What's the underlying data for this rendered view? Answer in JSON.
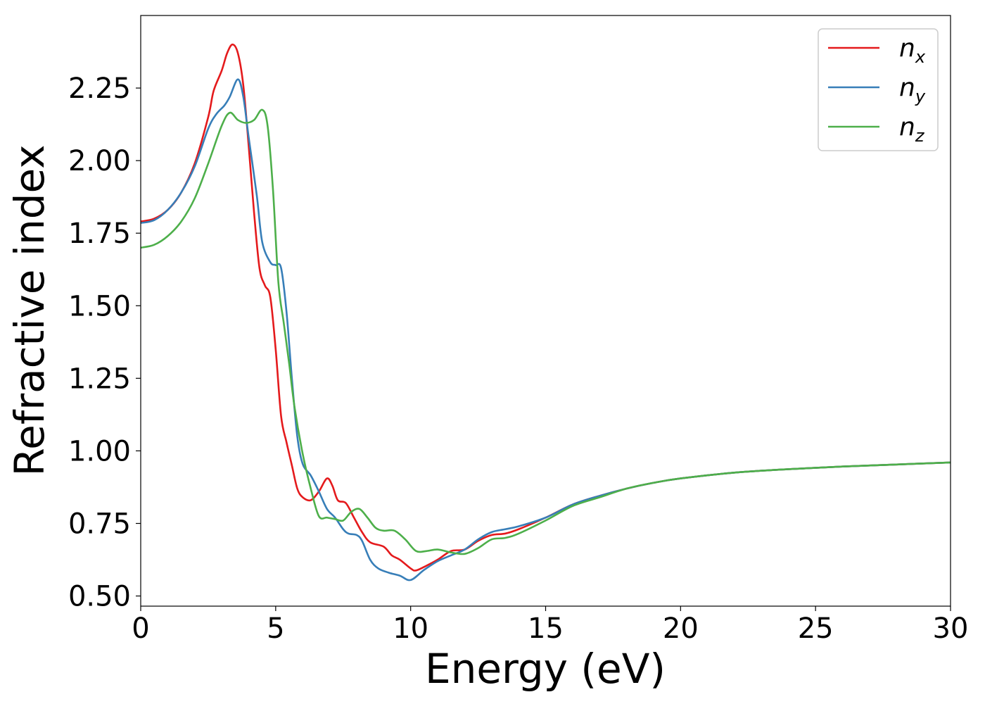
{
  "chart_data": {
    "type": "line",
    "xlabel": "Energy (eV)",
    "ylabel": "Refractive index",
    "xlim": [
      0,
      30
    ],
    "ylim": [
      0.465,
      2.5
    ],
    "xticks": [
      0,
      5,
      10,
      15,
      20,
      25,
      30
    ],
    "xtick_labels": [
      "0",
      "5",
      "10",
      "15",
      "20",
      "25",
      "30"
    ],
    "yticks": [
      0.5,
      0.75,
      1.0,
      1.25,
      1.5,
      1.75,
      2.0,
      2.25
    ],
    "ytick_labels": [
      "0.50",
      "0.75",
      "1.00",
      "1.25",
      "1.50",
      "1.75",
      "2.00",
      "2.25"
    ],
    "grid": false,
    "legend_position": "top-right",
    "series": [
      {
        "name": "n",
        "subscript": "x",
        "color": "#e41a1c",
        "points": [
          [
            0,
            1.79
          ],
          [
            0.5,
            1.8
          ],
          [
            1.0,
            1.83
          ],
          [
            1.5,
            1.89
          ],
          [
            2.0,
            1.99
          ],
          [
            2.5,
            2.15
          ],
          [
            2.7,
            2.24
          ],
          [
            3.0,
            2.31
          ],
          [
            3.2,
            2.37
          ],
          [
            3.4,
            2.4
          ],
          [
            3.6,
            2.37
          ],
          [
            3.8,
            2.26
          ],
          [
            4.0,
            2.05
          ],
          [
            4.2,
            1.82
          ],
          [
            4.4,
            1.63
          ],
          [
            4.6,
            1.57
          ],
          [
            4.8,
            1.53
          ],
          [
            5.0,
            1.35
          ],
          [
            5.2,
            1.12
          ],
          [
            5.4,
            1.03
          ],
          [
            5.6,
            0.95
          ],
          [
            5.8,
            0.87
          ],
          [
            6.0,
            0.84
          ],
          [
            6.3,
            0.83
          ],
          [
            6.6,
            0.86
          ],
          [
            6.9,
            0.905
          ],
          [
            7.1,
            0.88
          ],
          [
            7.3,
            0.83
          ],
          [
            7.6,
            0.82
          ],
          [
            7.9,
            0.77
          ],
          [
            8.2,
            0.72
          ],
          [
            8.5,
            0.685
          ],
          [
            9.0,
            0.67
          ],
          [
            9.3,
            0.64
          ],
          [
            9.6,
            0.625
          ],
          [
            10.0,
            0.595
          ],
          [
            10.2,
            0.588
          ],
          [
            10.6,
            0.605
          ],
          [
            11.0,
            0.625
          ],
          [
            11.5,
            0.655
          ],
          [
            12.0,
            0.66
          ],
          [
            12.5,
            0.69
          ],
          [
            13.0,
            0.71
          ],
          [
            13.5,
            0.715
          ],
          [
            14.0,
            0.73
          ],
          [
            15.0,
            0.77
          ],
          [
            16.0,
            0.815
          ],
          [
            17.0,
            0.845
          ],
          [
            18.0,
            0.87
          ],
          [
            19.0,
            0.89
          ],
          [
            20.0,
            0.905
          ],
          [
            22.0,
            0.925
          ],
          [
            24.0,
            0.937
          ],
          [
            26.0,
            0.946
          ],
          [
            28.0,
            0.953
          ],
          [
            30.0,
            0.96
          ]
        ]
      },
      {
        "name": "n",
        "subscript": "y",
        "color": "#377eb8",
        "points": [
          [
            0,
            1.785
          ],
          [
            0.5,
            1.795
          ],
          [
            1.0,
            1.83
          ],
          [
            1.5,
            1.89
          ],
          [
            2.0,
            1.98
          ],
          [
            2.5,
            2.11
          ],
          [
            2.8,
            2.16
          ],
          [
            3.1,
            2.19
          ],
          [
            3.3,
            2.22
          ],
          [
            3.6,
            2.28
          ],
          [
            3.8,
            2.22
          ],
          [
            4.0,
            2.08
          ],
          [
            4.3,
            1.88
          ],
          [
            4.5,
            1.72
          ],
          [
            4.8,
            1.65
          ],
          [
            5.0,
            1.64
          ],
          [
            5.2,
            1.63
          ],
          [
            5.4,
            1.48
          ],
          [
            5.6,
            1.25
          ],
          [
            5.8,
            1.05
          ],
          [
            6.0,
            0.955
          ],
          [
            6.3,
            0.915
          ],
          [
            6.6,
            0.86
          ],
          [
            6.9,
            0.8
          ],
          [
            7.2,
            0.77
          ],
          [
            7.5,
            0.73
          ],
          [
            7.7,
            0.715
          ],
          [
            8.0,
            0.71
          ],
          [
            8.2,
            0.69
          ],
          [
            8.5,
            0.625
          ],
          [
            8.8,
            0.595
          ],
          [
            9.2,
            0.58
          ],
          [
            9.6,
            0.57
          ],
          [
            10.0,
            0.555
          ],
          [
            10.5,
            0.59
          ],
          [
            11.0,
            0.62
          ],
          [
            11.5,
            0.64
          ],
          [
            12.0,
            0.66
          ],
          [
            12.5,
            0.695
          ],
          [
            13.0,
            0.72
          ],
          [
            13.5,
            0.73
          ],
          [
            14.0,
            0.74
          ],
          [
            15.0,
            0.77
          ],
          [
            16.0,
            0.815
          ],
          [
            17.0,
            0.845
          ],
          [
            18.0,
            0.87
          ],
          [
            19.0,
            0.89
          ],
          [
            20.0,
            0.905
          ],
          [
            22.0,
            0.925
          ],
          [
            24.0,
            0.937
          ],
          [
            26.0,
            0.946
          ],
          [
            28.0,
            0.953
          ],
          [
            30.0,
            0.96
          ]
        ]
      },
      {
        "name": "n",
        "subscript": "z",
        "color": "#4daf4a",
        "points": [
          [
            0,
            1.7
          ],
          [
            0.5,
            1.71
          ],
          [
            1.0,
            1.74
          ],
          [
            1.5,
            1.79
          ],
          [
            2.0,
            1.87
          ],
          [
            2.5,
            1.99
          ],
          [
            3.0,
            2.12
          ],
          [
            3.3,
            2.165
          ],
          [
            3.6,
            2.14
          ],
          [
            3.9,
            2.13
          ],
          [
            4.2,
            2.14
          ],
          [
            4.5,
            2.175
          ],
          [
            4.7,
            2.12
          ],
          [
            4.9,
            1.9
          ],
          [
            5.1,
            1.58
          ],
          [
            5.3,
            1.44
          ],
          [
            5.5,
            1.3
          ],
          [
            5.7,
            1.15
          ],
          [
            6.0,
            0.99
          ],
          [
            6.3,
            0.87
          ],
          [
            6.6,
            0.775
          ],
          [
            6.9,
            0.77
          ],
          [
            7.2,
            0.765
          ],
          [
            7.5,
            0.76
          ],
          [
            7.8,
            0.79
          ],
          [
            8.1,
            0.8
          ],
          [
            8.4,
            0.77
          ],
          [
            8.7,
            0.735
          ],
          [
            9.0,
            0.725
          ],
          [
            9.4,
            0.725
          ],
          [
            9.8,
            0.695
          ],
          [
            10.2,
            0.655
          ],
          [
            10.6,
            0.655
          ],
          [
            11.0,
            0.66
          ],
          [
            11.5,
            0.65
          ],
          [
            12.0,
            0.645
          ],
          [
            12.5,
            0.665
          ],
          [
            13.0,
            0.695
          ],
          [
            13.5,
            0.7
          ],
          [
            14.0,
            0.715
          ],
          [
            15.0,
            0.76
          ],
          [
            16.0,
            0.81
          ],
          [
            17.0,
            0.84
          ],
          [
            18.0,
            0.87
          ],
          [
            19.0,
            0.89
          ],
          [
            20.0,
            0.905
          ],
          [
            22.0,
            0.925
          ],
          [
            24.0,
            0.937
          ],
          [
            26.0,
            0.946
          ],
          [
            28.0,
            0.953
          ],
          [
            30.0,
            0.96
          ]
        ]
      }
    ]
  }
}
